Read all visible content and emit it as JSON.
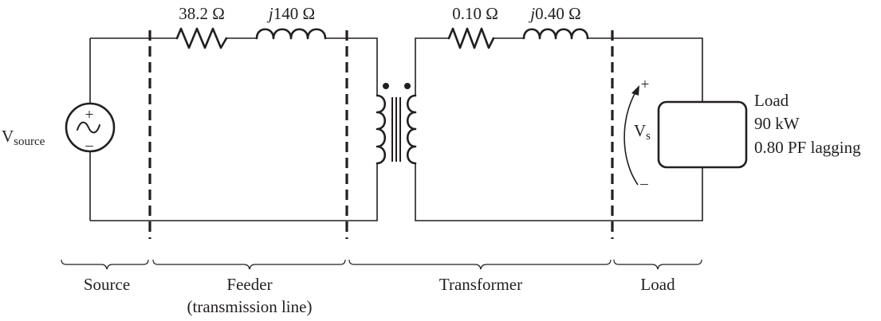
{
  "feeder": {
    "resistance": {
      "value": "38.2",
      "unit": "Ω"
    },
    "reactance": {
      "prefix": "j",
      "value": "140",
      "unit": "Ω"
    }
  },
  "transformer": {
    "resistance": {
      "value": "0.10",
      "unit": "Ω"
    },
    "reactance": {
      "prefix": "j",
      "value": "0.40",
      "unit": "Ω"
    }
  },
  "source": {
    "symbol": "V",
    "subscript": "source",
    "plus": "+",
    "minus": "–"
  },
  "load": {
    "title": "Load",
    "power": "90 kW",
    "power_factor": "0.80 PF lagging",
    "voltage_symbol": "V",
    "voltage_subscript": "s",
    "plus": "+",
    "minus": "–"
  },
  "sections": {
    "source": "Source",
    "feeder_line1": "Feeder",
    "feeder_line2": "(transmission line)",
    "transformer": "Transformer",
    "load": "Load"
  }
}
